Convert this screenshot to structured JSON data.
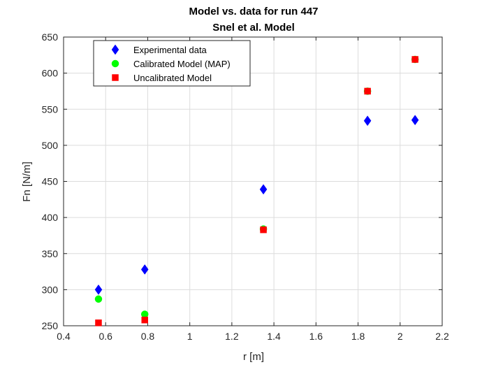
{
  "chart_data": {
    "type": "scatter",
    "title": "Model vs. data for run 447",
    "subtitle": "Snel et al. Model",
    "xlabel": "r [m]",
    "ylabel": "Fn [N/m]",
    "xlim": [
      0.4,
      2.2
    ],
    "ylim": [
      250,
      650
    ],
    "xticks": [
      "0.4",
      "0.6",
      "0.8",
      "1",
      "1.2",
      "1.4",
      "1.6",
      "1.8",
      "2",
      "2.2"
    ],
    "yticks": [
      "250",
      "300",
      "350",
      "400",
      "450",
      "500",
      "550",
      "600",
      "650"
    ],
    "grid": true,
    "legend_position": "top-left",
    "series": [
      {
        "name": "Experimental data",
        "marker": "diamond",
        "color": "#0000ff",
        "points": [
          {
            "x": 0.566,
            "y": 300
          },
          {
            "x": 0.786,
            "y": 328
          },
          {
            "x": 1.35,
            "y": 439
          },
          {
            "x": 1.845,
            "y": 534
          },
          {
            "x": 2.071,
            "y": 535
          }
        ]
      },
      {
        "name": "Calibrated Model (MAP)",
        "marker": "circle",
        "color": "#00ff00",
        "points": [
          {
            "x": 0.566,
            "y": 287
          },
          {
            "x": 0.786,
            "y": 266
          },
          {
            "x": 1.35,
            "y": 384
          },
          {
            "x": 1.845,
            "y": 575
          },
          {
            "x": 2.071,
            "y": 619
          }
        ]
      },
      {
        "name": "Uncalibrated Model",
        "marker": "square",
        "color": "#ff0000",
        "points": [
          {
            "x": 0.566,
            "y": 254
          },
          {
            "x": 0.786,
            "y": 258
          },
          {
            "x": 1.35,
            "y": 383
          },
          {
            "x": 1.845,
            "y": 575
          },
          {
            "x": 2.071,
            "y": 619
          }
        ]
      }
    ]
  }
}
